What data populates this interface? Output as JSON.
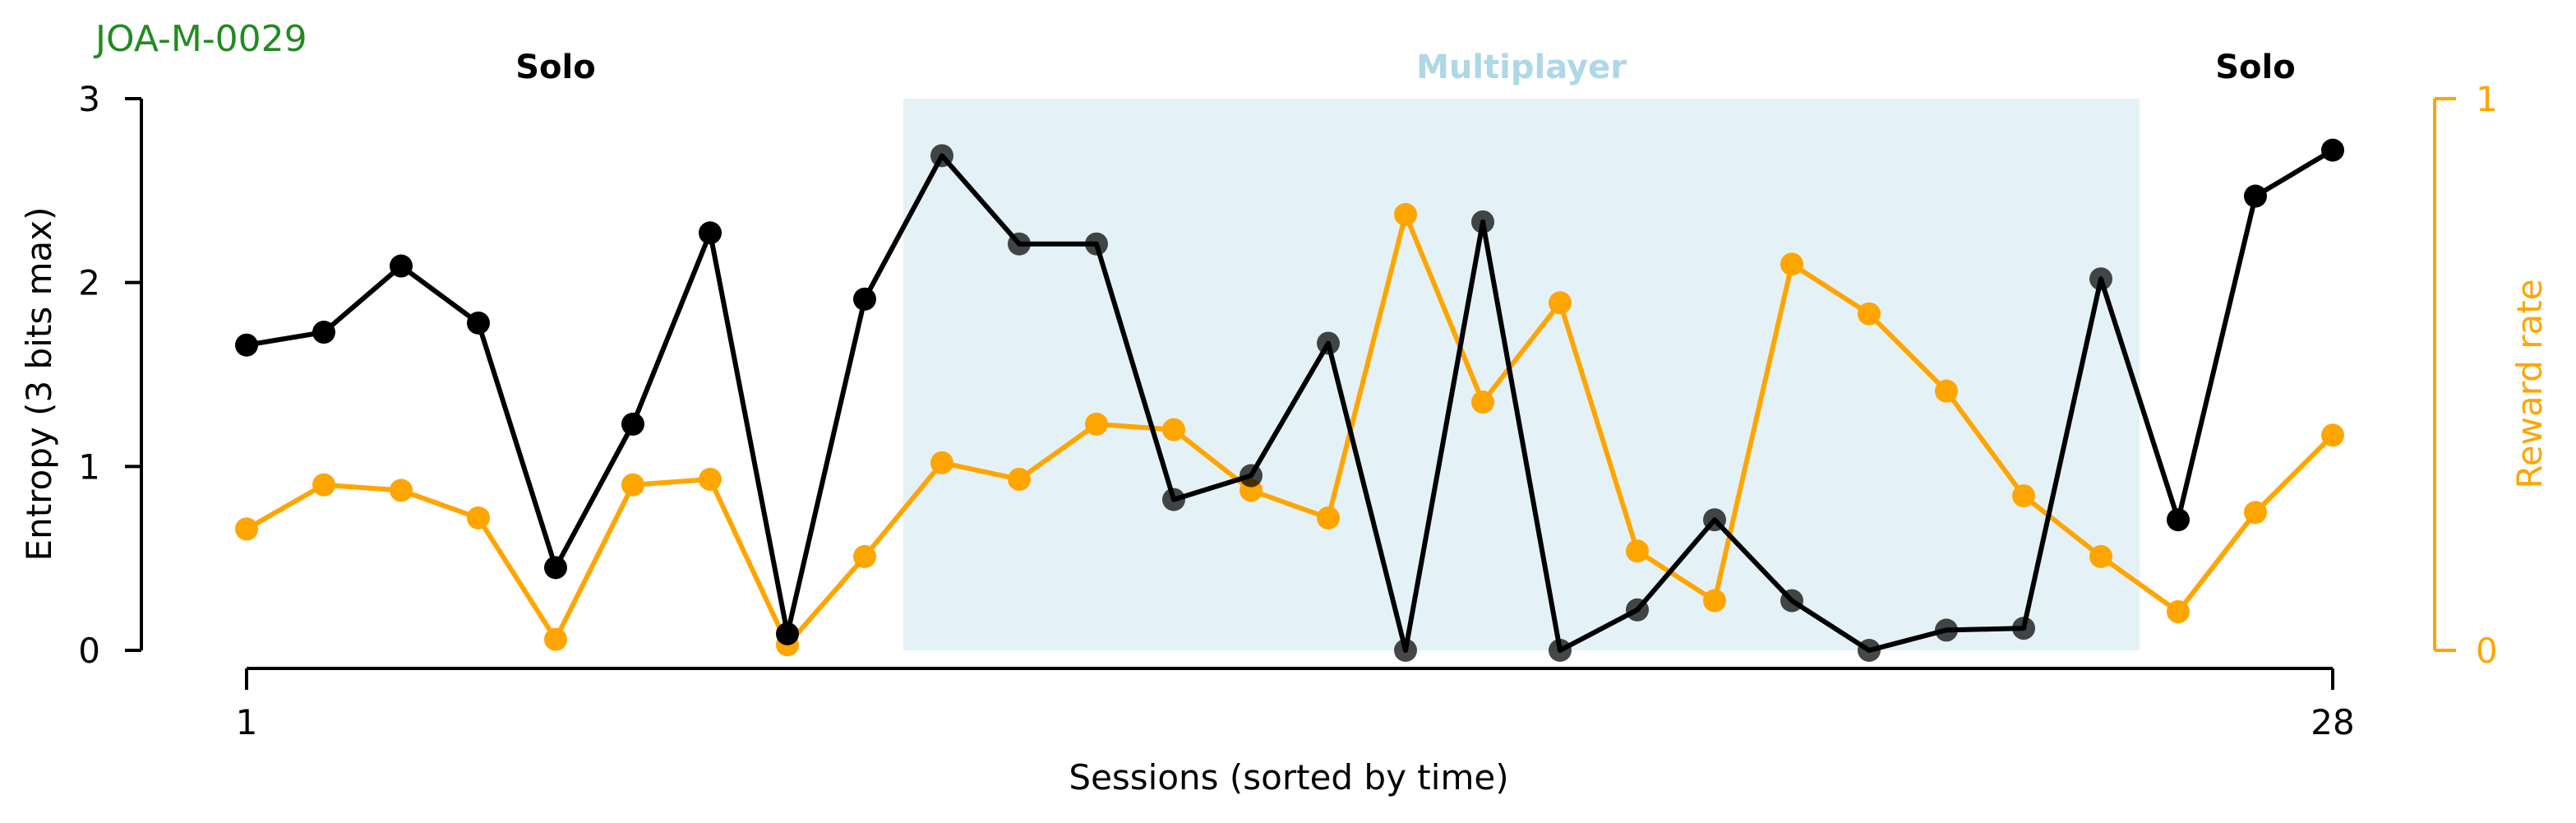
{
  "subject_id": "JOA-M-0029",
  "colors": {
    "entropy": "#000000",
    "reward": "#ffa500",
    "multiplayer_shade": "#add8e6",
    "subject_id": "#228b22",
    "multiplayer_label": "#add8e6",
    "solo_label": "#000000"
  },
  "chart_data": {
    "type": "line",
    "x": [
      1,
      2,
      3,
      4,
      5,
      6,
      7,
      8,
      9,
      10,
      11,
      12,
      13,
      14,
      15,
      16,
      17,
      18,
      19,
      20,
      21,
      22,
      23,
      24,
      25,
      26,
      27,
      28
    ],
    "xlabel": "Sessions (sorted by time)",
    "xticks": [
      1,
      28
    ],
    "xlim": [
      1,
      28
    ],
    "ylabel_left": "Entropy (3 bits max)",
    "ylim_left": [
      0,
      3
    ],
    "yticks_left": [
      0,
      1,
      2,
      3
    ],
    "ylabel_right": "Reward rate",
    "ylim_right": [
      0,
      1
    ],
    "yticks_right": [
      0,
      1
    ],
    "series": [
      {
        "axis": "left",
        "color": "#000000",
        "values": [
          1.66,
          1.73,
          2.09,
          1.78,
          0.45,
          1.23,
          2.27,
          0.09,
          1.91,
          2.69,
          2.21,
          2.21,
          0.82,
          0.95,
          1.67,
          0.0,
          2.33,
          0.0,
          0.22,
          0.71,
          0.27,
          0.0,
          0.11,
          0.12,
          2.02,
          0.71,
          2.47,
          2.72
        ]
      },
      {
        "axis": "right",
        "color": "#ffa500",
        "values": [
          0.22,
          0.3,
          0.29,
          0.24,
          0.02,
          0.3,
          0.31,
          0.01,
          0.17,
          0.34,
          0.31,
          0.41,
          0.4,
          0.29,
          0.24,
          0.79,
          0.45,
          0.63,
          0.18,
          0.09,
          0.7,
          0.61,
          0.47,
          0.28,
          0.17,
          0.07,
          0.25,
          0.39
        ]
      }
    ],
    "phases": [
      {
        "label": "Solo",
        "start": 1,
        "end": 9,
        "shaded": false
      },
      {
        "label": "Multiplayer",
        "start": 9.5,
        "end": 25.5,
        "shaded": true
      },
      {
        "label": "Solo",
        "start": 26,
        "end": 28,
        "shaded": false
      }
    ],
    "grid": false
  }
}
